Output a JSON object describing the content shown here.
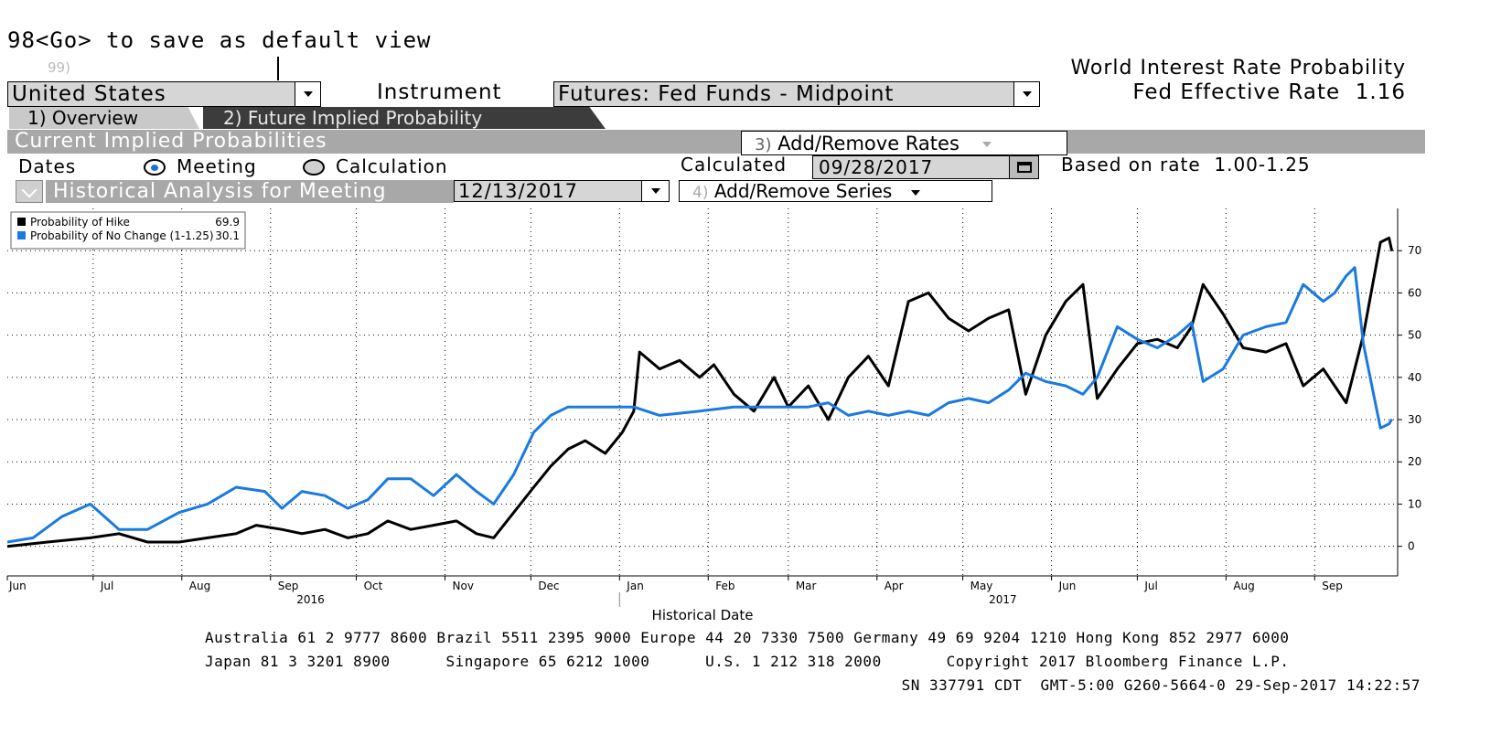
{
  "header": {
    "command_hint": "98<Go> to save as default view",
    "field_hint": "99)",
    "title": "World Interest Rate Probability",
    "fed_effective_label": "Fed Effective Rate",
    "fed_effective_value": "1.16"
  },
  "country_select": {
    "value": "United States"
  },
  "instrument": {
    "label": "Instrument",
    "value": "Futures: Fed Funds - Midpoint"
  },
  "tabs": [
    {
      "label": "1) Overview",
      "active": true
    },
    {
      "label": "2) Future Implied Probability",
      "active": false
    }
  ],
  "section": {
    "title": "Current Implied Probabilities",
    "add_rates_num": "3)",
    "add_rates_label": "Add/Remove Rates"
  },
  "dates_row": {
    "label": "Dates",
    "option_meeting": "Meeting",
    "option_calculation": "Calculation",
    "selected": "Meeting",
    "calculated_label": "Calculated",
    "calculated_date": "09/28/2017",
    "based_on_label": "Based on rate",
    "based_on_value": "1.00-1.25"
  },
  "historical": {
    "title": "Historical Analysis for Meeting",
    "meeting_date": "12/13/2017",
    "add_series_num": "4)",
    "add_series_label": "Add/Remove Series"
  },
  "colors": {
    "hike": "#000000",
    "no_change": "#1a7ae0",
    "banner": "#a8a8a8",
    "tab_dark": "#3c3c3c"
  },
  "chart_data": {
    "type": "line",
    "xlabel": "Historical Date",
    "x_ticks": [
      "Jun",
      "Jul",
      "Aug",
      "Sep",
      "Oct",
      "Nov",
      "Dec",
      "Jan",
      "Feb",
      "Mar",
      "Apr",
      "May",
      "Jun",
      "Jul",
      "Aug",
      "Sep"
    ],
    "year_labels": [
      "2016",
      "2017"
    ],
    "y_ticks": [
      "0",
      "10",
      "20",
      "30",
      "40",
      "50",
      "60",
      "70"
    ],
    "ylim": [
      -7,
      80
    ],
    "grid": true,
    "legend_position": "top-left",
    "series": [
      {
        "name": "Probability of Hike",
        "last_value": "69.9",
        "points": [
          [
            "2016-06-01",
            0
          ],
          [
            "2016-06-15",
            1
          ],
          [
            "2016-06-30",
            2
          ],
          [
            "2016-07-10",
            3
          ],
          [
            "2016-07-20",
            1
          ],
          [
            "2016-07-31",
            1
          ],
          [
            "2016-08-10",
            2
          ],
          [
            "2016-08-20",
            3
          ],
          [
            "2016-08-27",
            5
          ],
          [
            "2016-09-05",
            4
          ],
          [
            "2016-09-12",
            3
          ],
          [
            "2016-09-20",
            4
          ],
          [
            "2016-09-28",
            2
          ],
          [
            "2016-10-05",
            3
          ],
          [
            "2016-10-12",
            6
          ],
          [
            "2016-10-20",
            4
          ],
          [
            "2016-10-28",
            5
          ],
          [
            "2016-11-05",
            6
          ],
          [
            "2016-11-12",
            3
          ],
          [
            "2016-11-18",
            2
          ],
          [
            "2016-11-25",
            8
          ],
          [
            "2016-12-02",
            14
          ],
          [
            "2016-12-08",
            19
          ],
          [
            "2016-12-14",
            23
          ],
          [
            "2016-12-20",
            25
          ],
          [
            "2016-12-27",
            22
          ],
          [
            "2017-01-02",
            27
          ],
          [
            "2017-01-06",
            32
          ],
          [
            "2017-01-08",
            46
          ],
          [
            "2017-01-15",
            42
          ],
          [
            "2017-01-22",
            44
          ],
          [
            "2017-01-29",
            40
          ],
          [
            "2017-02-03",
            43
          ],
          [
            "2017-02-10",
            36
          ],
          [
            "2017-02-17",
            32
          ],
          [
            "2017-02-24",
            40
          ],
          [
            "2017-03-01",
            33
          ],
          [
            "2017-03-08",
            38
          ],
          [
            "2017-03-15",
            30
          ],
          [
            "2017-03-22",
            40
          ],
          [
            "2017-03-29",
            45
          ],
          [
            "2017-04-05",
            38
          ],
          [
            "2017-04-12",
            58
          ],
          [
            "2017-04-19",
            60
          ],
          [
            "2017-04-26",
            54
          ],
          [
            "2017-05-03",
            51
          ],
          [
            "2017-05-10",
            54
          ],
          [
            "2017-05-17",
            56
          ],
          [
            "2017-05-23",
            36
          ],
          [
            "2017-05-30",
            50
          ],
          [
            "2017-06-06",
            58
          ],
          [
            "2017-06-12",
            62
          ],
          [
            "2017-06-17",
            35
          ],
          [
            "2017-06-24",
            42
          ],
          [
            "2017-07-01",
            48
          ],
          [
            "2017-07-08",
            49
          ],
          [
            "2017-07-15",
            47
          ],
          [
            "2017-07-20",
            52
          ],
          [
            "2017-07-24",
            62
          ],
          [
            "2017-07-31",
            55
          ],
          [
            "2017-08-07",
            47
          ],
          [
            "2017-08-15",
            46
          ],
          [
            "2017-08-22",
            48
          ],
          [
            "2017-08-28",
            38
          ],
          [
            "2017-09-04",
            42
          ],
          [
            "2017-09-12",
            34
          ],
          [
            "2017-09-18",
            50
          ],
          [
            "2017-09-24",
            72
          ],
          [
            "2017-09-27",
            73
          ],
          [
            "2017-09-28",
            69.9
          ]
        ]
      },
      {
        "name": "Probability of No Change (1-1.25)",
        "last_value": "30.1",
        "points": [
          [
            "2016-06-01",
            1
          ],
          [
            "2016-06-10",
            2
          ],
          [
            "2016-06-20",
            7
          ],
          [
            "2016-06-30",
            10
          ],
          [
            "2016-07-10",
            4
          ],
          [
            "2016-07-20",
            4
          ],
          [
            "2016-07-31",
            8
          ],
          [
            "2016-08-10",
            10
          ],
          [
            "2016-08-20",
            14
          ],
          [
            "2016-08-30",
            13
          ],
          [
            "2016-09-05",
            9
          ],
          [
            "2016-09-12",
            13
          ],
          [
            "2016-09-20",
            12
          ],
          [
            "2016-09-28",
            9
          ],
          [
            "2016-10-05",
            11
          ],
          [
            "2016-10-12",
            16
          ],
          [
            "2016-10-20",
            16
          ],
          [
            "2016-10-28",
            12
          ],
          [
            "2016-11-05",
            17
          ],
          [
            "2016-11-12",
            13
          ],
          [
            "2016-11-18",
            10
          ],
          [
            "2016-11-25",
            17
          ],
          [
            "2016-12-02",
            27
          ],
          [
            "2016-12-08",
            31
          ],
          [
            "2016-12-14",
            33
          ],
          [
            "2016-12-27",
            33
          ],
          [
            "2017-01-06",
            33
          ],
          [
            "2017-01-15",
            31
          ],
          [
            "2017-01-29",
            32
          ],
          [
            "2017-02-10",
            33
          ],
          [
            "2017-02-24",
            33
          ],
          [
            "2017-03-08",
            33
          ],
          [
            "2017-03-15",
            34
          ],
          [
            "2017-03-22",
            31
          ],
          [
            "2017-03-29",
            32
          ],
          [
            "2017-04-05",
            31
          ],
          [
            "2017-04-12",
            32
          ],
          [
            "2017-04-19",
            31
          ],
          [
            "2017-04-26",
            34
          ],
          [
            "2017-05-03",
            35
          ],
          [
            "2017-05-10",
            34
          ],
          [
            "2017-05-17",
            37
          ],
          [
            "2017-05-23",
            41
          ],
          [
            "2017-05-30",
            39
          ],
          [
            "2017-06-06",
            38
          ],
          [
            "2017-06-12",
            36
          ],
          [
            "2017-06-17",
            40
          ],
          [
            "2017-06-24",
            52
          ],
          [
            "2017-07-01",
            49
          ],
          [
            "2017-07-08",
            47
          ],
          [
            "2017-07-15",
            50
          ],
          [
            "2017-07-20",
            53
          ],
          [
            "2017-07-24",
            39
          ],
          [
            "2017-07-31",
            42
          ],
          [
            "2017-08-07",
            50
          ],
          [
            "2017-08-15",
            52
          ],
          [
            "2017-08-22",
            53
          ],
          [
            "2017-08-28",
            62
          ],
          [
            "2017-09-04",
            58
          ],
          [
            "2017-09-08",
            60
          ],
          [
            "2017-09-12",
            64
          ],
          [
            "2017-09-15",
            66
          ],
          [
            "2017-09-18",
            48
          ],
          [
            "2017-09-24",
            28
          ],
          [
            "2017-09-27",
            29
          ],
          [
            "2017-09-28",
            30.1
          ]
        ]
      }
    ]
  },
  "footer": {
    "line1": "Australia 61 2 9777 8600 Brazil 5511 2395 9000 Europe 44 20 7330 7500 Germany 49 69 9204 1210 Hong Kong 852 2977 6000",
    "line2": "Japan 81 3 3201 8900      Singapore 65 6212 1000      U.S. 1 212 318 2000       Copyright 2017 Bloomberg Finance L.P.",
    "line3": "SN 337791 CDT  GMT-5:00 G260-5664-0 29-Sep-2017 14:22:57"
  }
}
